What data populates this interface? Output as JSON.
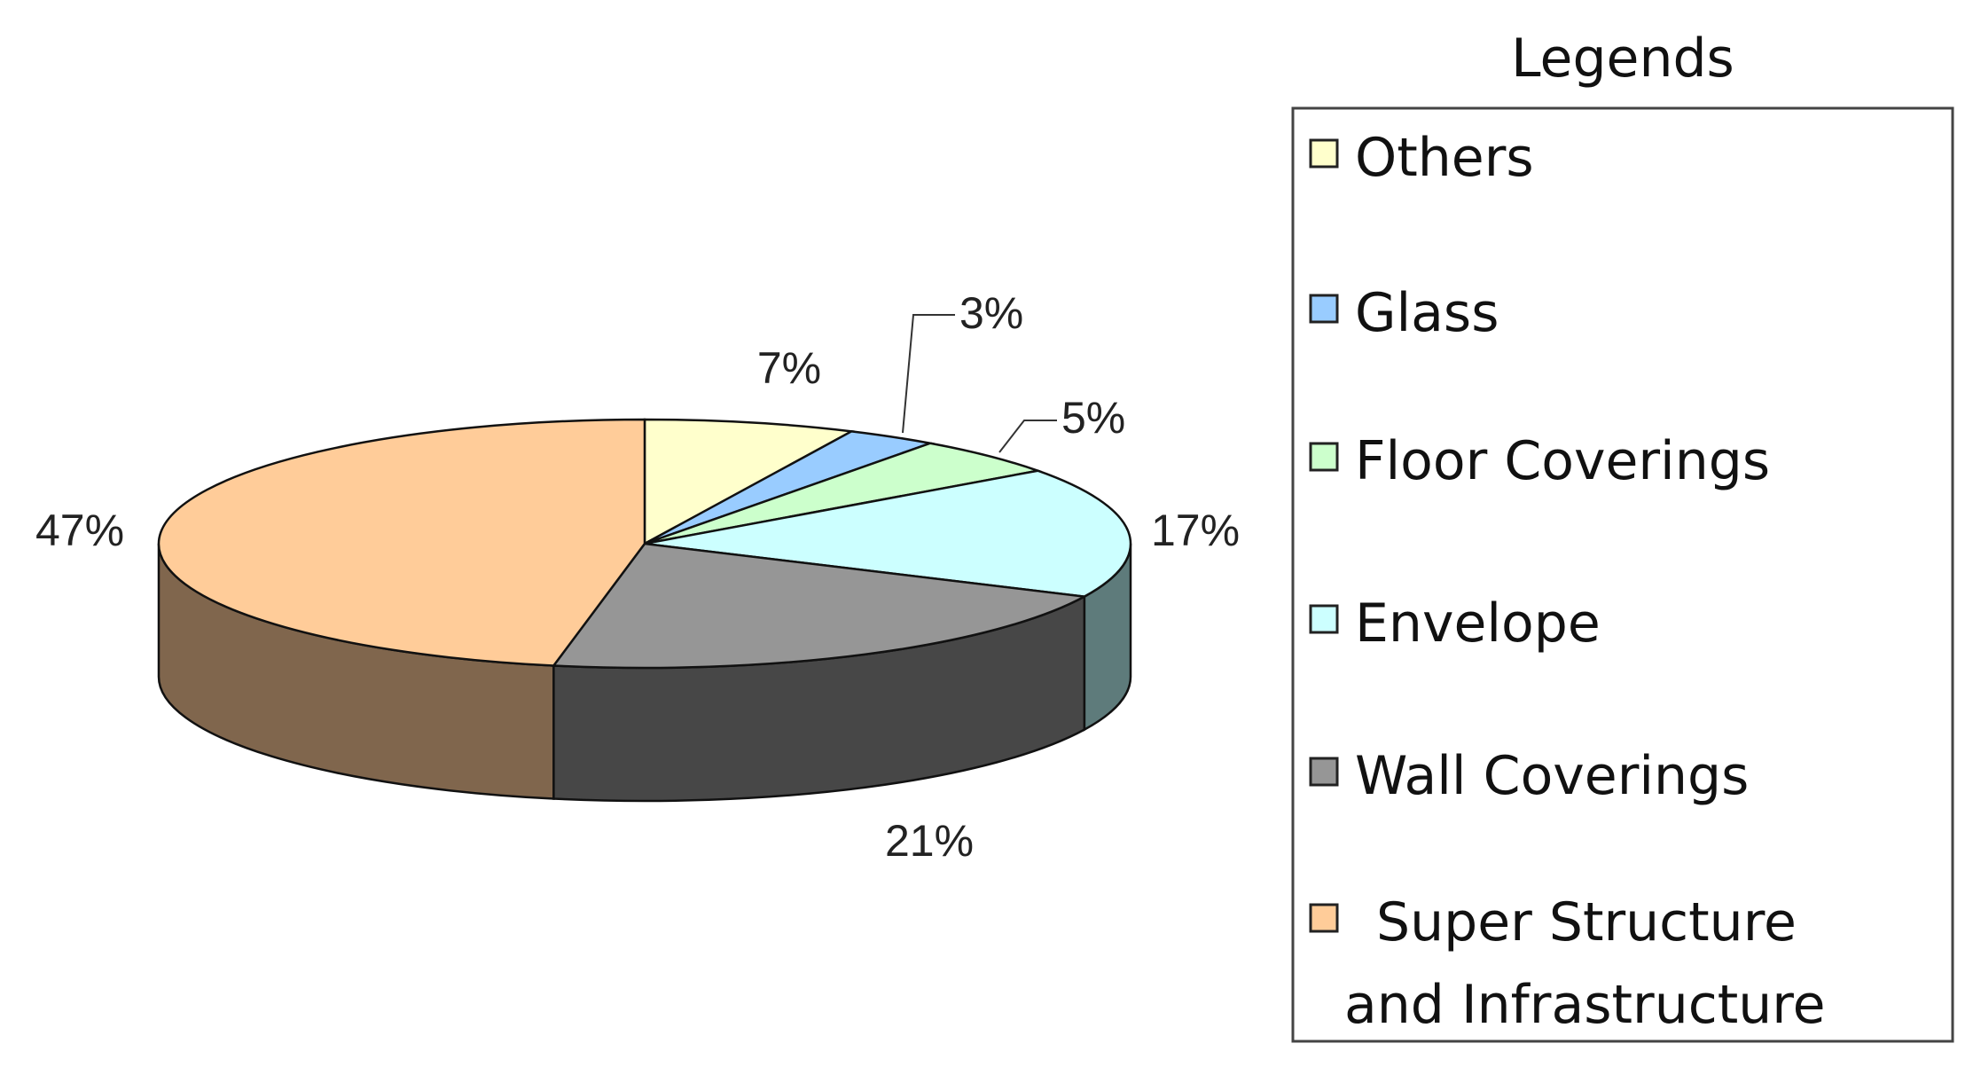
{
  "chart_data": {
    "type": "pie",
    "style": "3d-exploded-tilt",
    "legend_title": "Legends",
    "legend_position": "right",
    "slices": [
      {
        "name": "Others",
        "value": 7,
        "label": "7%",
        "color": "#FFFFCC",
        "side_color": "#8C8C70"
      },
      {
        "name": "Glass",
        "value": 3,
        "label": "3%",
        "color": "#99CCFF",
        "side_color": "#55708C"
      },
      {
        "name": "Floor Coverings",
        "value": 5,
        "label": "5%",
        "color": "#CCFFCC",
        "side_color": "#708C70"
      },
      {
        "name": "Envelope",
        "value": 17,
        "label": "17%",
        "color": "#CCFFFF",
        "side_color": "#5E7B7B"
      },
      {
        "name": "Wall Coverings",
        "value": 21,
        "label": "21%",
        "color": "#969696",
        "side_color": "#474747"
      },
      {
        "name": "Super Structure and Infrastructure",
        "value": 47,
        "label": "47%",
        "color": "#FFCC99",
        "side_color": "#80664D",
        "legend_lines": [
          "Super Structure",
          "and Infrastructure"
        ]
      }
    ]
  }
}
